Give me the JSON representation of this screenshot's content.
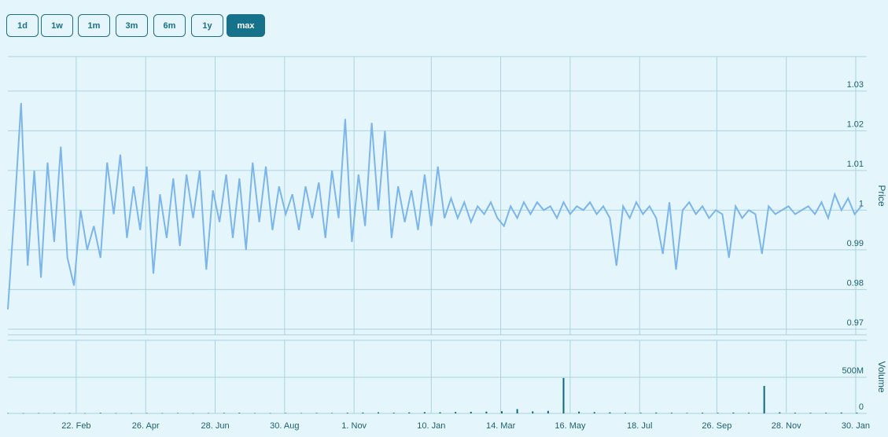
{
  "buttons": [
    "1d",
    "1w",
    "1m",
    "3m",
    "6m",
    "1y",
    "max"
  ],
  "selected_button": 6,
  "chart_data": [
    {
      "type": "line",
      "y_label": "Price",
      "color": "#7cb5ec",
      "grid": true,
      "xlim": [
        0,
        779
      ],
      "ylim": [
        0.9686,
        1.0387
      ],
      "yticks": [
        0.97,
        0.98,
        0.99,
        1,
        1.01,
        1.02,
        1.03
      ],
      "xticks": [
        {
          "value": 62,
          "label": "22. Feb"
        },
        {
          "value": 125,
          "label": "26. Apr"
        },
        {
          "value": 188,
          "label": "28. Jun"
        },
        {
          "value": 251,
          "label": "30. Aug"
        },
        {
          "value": 314,
          "label": "1. Nov"
        },
        {
          "value": 384,
          "label": "10. Jan"
        },
        {
          "value": 447,
          "label": "14. Mar"
        },
        {
          "value": 510,
          "label": "16. May"
        },
        {
          "value": 573,
          "label": "18. Jul"
        },
        {
          "value": 643,
          "label": "26. Sep"
        },
        {
          "value": 706,
          "label": "28. Nov"
        },
        {
          "value": 769,
          "label": "30. Jan"
        }
      ],
      "x": [
        0,
        6,
        12,
        18,
        24,
        30,
        36,
        42,
        48,
        54,
        60,
        66,
        72,
        78,
        84,
        90,
        96,
        102,
        108,
        114,
        120,
        126,
        132,
        138,
        144,
        150,
        156,
        162,
        168,
        174,
        180,
        186,
        192,
        198,
        204,
        210,
        216,
        222,
        228,
        234,
        240,
        246,
        252,
        258,
        264,
        270,
        276,
        282,
        288,
        294,
        300,
        306,
        312,
        318,
        324,
        330,
        336,
        342,
        348,
        354,
        360,
        366,
        372,
        378,
        384,
        390,
        396,
        402,
        408,
        414,
        420,
        426,
        432,
        438,
        444,
        450,
        456,
        462,
        468,
        474,
        480,
        486,
        492,
        498,
        504,
        510,
        516,
        522,
        528,
        534,
        540,
        546,
        552,
        558,
        564,
        570,
        576,
        582,
        588,
        594,
        600,
        606,
        612,
        618,
        624,
        630,
        636,
        642,
        648,
        654,
        660,
        666,
        672,
        678,
        684,
        690,
        696,
        702,
        708,
        714,
        720,
        726,
        732,
        738,
        744,
        750,
        756,
        762,
        768,
        774
      ],
      "values": [
        0.975,
        1.0,
        1.027,
        0.986,
        1.01,
        0.983,
        1.012,
        0.992,
        1.016,
        0.988,
        0.981,
        1.0,
        0.99,
        0.996,
        0.988,
        1.012,
        0.999,
        1.014,
        0.993,
        1.006,
        0.995,
        1.011,
        0.984,
        1.004,
        0.993,
        1.008,
        0.991,
        1.009,
        0.998,
        1.01,
        0.985,
        1.005,
        0.997,
        1.009,
        0.993,
        1.008,
        0.99,
        1.012,
        0.997,
        1.011,
        0.995,
        1.006,
        0.999,
        1.004,
        0.995,
        1.006,
        0.998,
        1.007,
        0.993,
        1.01,
        0.998,
        1.023,
        0.992,
        1.009,
        0.996,
        1.022,
        1.0,
        1.02,
        0.993,
        1.006,
        0.997,
        1.005,
        0.995,
        1.009,
        0.996,
        1.011,
        0.998,
        1.003,
        0.998,
        1.002,
        0.997,
        1.001,
        0.999,
        1.002,
        0.998,
        0.996,
        1.001,
        0.998,
        1.002,
        0.999,
        1.002,
        1.0,
        1.001,
        0.998,
        1.002,
        0.999,
        1.001,
        1.0,
        1.002,
        0.999,
        1.001,
        0.998,
        0.986,
        1.001,
        0.998,
        1.002,
        0.999,
        1.001,
        0.998,
        0.989,
        1.002,
        0.985,
        1.0,
        1.002,
        0.999,
        1.001,
        0.998,
        1.0,
        0.999,
        0.988,
        1.001,
        0.998,
        1.0,
        0.999,
        0.989,
        1.001,
        0.999,
        1.0,
        1.001,
        0.999,
        1.0,
        1.001,
        0.999,
        1.002,
        0.998,
        1.004,
        1.0,
        1.003,
        0.999,
        1.001
      ]
    },
    {
      "type": "bar",
      "y_label": "Volume",
      "color": "#0c6a7e",
      "grid": true,
      "xlim": [
        0,
        779
      ],
      "ylim": [
        0,
        1010000000
      ],
      "yticks": [
        0,
        {
          "value": 500000000,
          "label": "500M"
        }
      ],
      "x": [
        0,
        14,
        28,
        42,
        56,
        70,
        84,
        98,
        112,
        126,
        140,
        154,
        168,
        182,
        196,
        210,
        224,
        238,
        252,
        266,
        280,
        294,
        308,
        322,
        336,
        350,
        364,
        378,
        392,
        406,
        420,
        434,
        448,
        462,
        476,
        490,
        504,
        518,
        532,
        546,
        560,
        574,
        588,
        602,
        616,
        630,
        644,
        658,
        672,
        686,
        700,
        714,
        728,
        742,
        756,
        770
      ],
      "values": [
        4000000,
        3000000,
        5000000,
        6000000,
        4000000,
        3000000,
        8000000,
        4000000,
        3000000,
        5000000,
        4000000,
        6000000,
        3000000,
        5000000,
        7000000,
        9000000,
        5000000,
        4000000,
        6000000,
        5000000,
        7000000,
        6000000,
        9000000,
        12000000,
        15000000,
        10000000,
        14000000,
        18000000,
        16000000,
        20000000,
        22000000,
        25000000,
        30000000,
        60000000,
        28000000,
        35000000,
        490000000,
        25000000,
        18000000,
        15000000,
        10000000,
        8000000,
        12000000,
        9000000,
        7000000,
        10000000,
        8000000,
        12000000,
        9000000,
        380000000,
        15000000,
        10000000,
        8000000,
        9000000,
        12000000,
        10000000
      ]
    }
  ]
}
